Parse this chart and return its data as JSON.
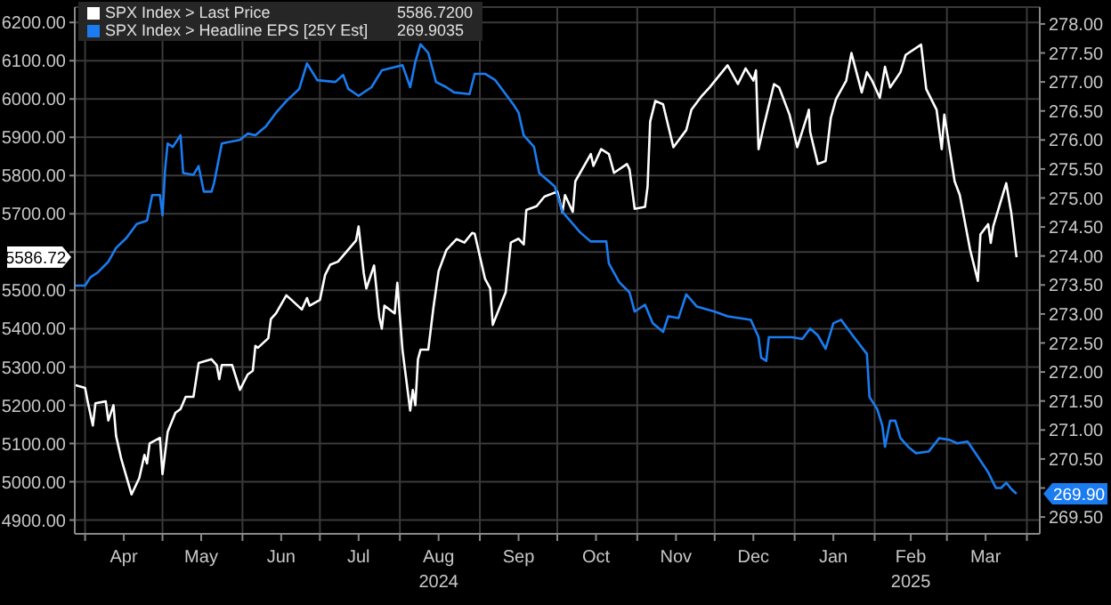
{
  "chart_data": {
    "type": "line",
    "legend": "top left",
    "grid": true,
    "line_style": "solid",
    "marker": "none",
    "annotations": [
      "5586.7200",
      "269.9035",
      "5586.72",
      "269.90"
    ],
    "xlim": [
      "2024-03-28",
      "2025-04-06"
    ],
    "xticks": [
      {
        "value": "2024-04-01",
        "label": null
      },
      {
        "value": "2024-04-16",
        "label": "Apr"
      },
      {
        "value": "2024-05-01",
        "label": null
      },
      {
        "value": "2024-05-16",
        "label": "May"
      },
      {
        "value": "2024-06-01",
        "label": null
      },
      {
        "value": "2024-06-16",
        "label": "Jun"
      },
      {
        "value": "2024-07-01",
        "label": null
      },
      {
        "value": "2024-07-16",
        "label": "Jul"
      },
      {
        "value": "2024-08-01",
        "label": null
      },
      {
        "value": "2024-08-16",
        "label": "Aug\n2024"
      },
      {
        "value": "2024-09-01",
        "label": null
      },
      {
        "value": "2024-09-16",
        "label": "Sep"
      },
      {
        "value": "2024-10-01",
        "label": null
      },
      {
        "value": "2024-10-16",
        "label": "Oct"
      },
      {
        "value": "2024-11-01",
        "label": null
      },
      {
        "value": "2024-11-16",
        "label": "Nov"
      },
      {
        "value": "2024-12-01",
        "label": null
      },
      {
        "value": "2024-12-16",
        "label": "Dec"
      },
      {
        "value": "2025-01-01",
        "label": null
      },
      {
        "value": "2025-01-16",
        "label": "Jan"
      },
      {
        "value": "2025-02-01",
        "label": null
      },
      {
        "value": "2025-02-15",
        "label": "Feb\n2025"
      },
      {
        "value": "2025-03-01",
        "label": null
      },
      {
        "value": "2025-03-16",
        "label": "Mar"
      },
      {
        "value": "2025-04-01",
        "label": null
      }
    ],
    "ylim": [
      4864,
      6240
    ],
    "yticks": [
      {
        "value": 4900,
        "label": "4900.00"
      },
      {
        "value": 5000,
        "label": "5000.00"
      },
      {
        "value": 5100,
        "label": "5100.00"
      },
      {
        "value": 5200,
        "label": "5200.00"
      },
      {
        "value": 5300,
        "label": "5300.00"
      },
      {
        "value": 5400,
        "label": "5400.00"
      },
      {
        "value": 5500,
        "label": "5500.00"
      },
      {
        "value": 5600,
        "label": null
      },
      {
        "value": 5700,
        "label": "5700.00"
      },
      {
        "value": 5800,
        "label": "5800.00"
      },
      {
        "value": 5900,
        "label": "5900.00"
      },
      {
        "value": 6000,
        "label": "6000.00"
      },
      {
        "value": 6100,
        "label": "6100.00"
      },
      {
        "value": 6200,
        "label": "6200.00"
      }
    ],
    "y2lim": [
      269.21,
      278.29
    ],
    "y2ticks": [
      {
        "value": 269.5,
        "label": "269.50"
      },
      {
        "value": 270,
        "label": null
      },
      {
        "value": 270.5,
        "label": "270.50"
      },
      {
        "value": 271,
        "label": "271.00"
      },
      {
        "value": 271.5,
        "label": "271.50"
      },
      {
        "value": 272,
        "label": "272.00"
      },
      {
        "value": 272.5,
        "label": "272.50"
      },
      {
        "value": 273,
        "label": "273.00"
      },
      {
        "value": 273.5,
        "label": "273.50"
      },
      {
        "value": 274,
        "label": "274.00"
      },
      {
        "value": 274.5,
        "label": "274.50"
      },
      {
        "value": 275,
        "label": "275.00"
      },
      {
        "value": 275.5,
        "label": "275.50"
      },
      {
        "value": 276,
        "label": "276.00"
      },
      {
        "value": 276.5,
        "label": "276.50"
      },
      {
        "value": 277,
        "label": "277.00"
      },
      {
        "value": 277.5,
        "label": "277.50"
      },
      {
        "value": 278,
        "label": "278.00"
      }
    ],
    "series": [
      {
        "name": "SPX Index > Last Price",
        "color": "#ffffff",
        "x": [
          "2024-03-28",
          "2024-04-01",
          "2024-04-02",
          "2024-04-04",
          "2024-04-05",
          "2024-04-09",
          "2024-04-10",
          "2024-04-12",
          "2024-04-13",
          "2024-04-15",
          "2024-04-19",
          "2024-04-22",
          "2024-04-24",
          "2024-04-25",
          "2024-04-26",
          "2024-04-30",
          "2024-05-01",
          "2024-05-03",
          "2024-05-06",
          "2024-05-08",
          "2024-05-10",
          "2024-05-13",
          "2024-05-15",
          "2024-05-20",
          "2024-05-22",
          "2024-05-23",
          "2024-05-24",
          "2024-05-28",
          "2024-05-31",
          "2024-06-03",
          "2024-06-05",
          "2024-06-06",
          "2024-06-07",
          "2024-06-11",
          "2024-06-12",
          "2024-06-14",
          "2024-06-18",
          "2024-06-20",
          "2024-06-24",
          "2024-06-26",
          "2024-06-27",
          "2024-07-01",
          "2024-07-03",
          "2024-07-05",
          "2024-07-08",
          "2024-07-15",
          "2024-07-16",
          "2024-07-18",
          "2024-07-19",
          "2024-07-22",
          "2024-07-24",
          "2024-07-25",
          "2024-07-26",
          "2024-07-30",
          "2024-07-31",
          "2024-08-02",
          "2024-08-05",
          "2024-08-06",
          "2024-08-07",
          "2024-08-08",
          "2024-08-09",
          "2024-08-12",
          "2024-08-14",
          "2024-08-16",
          "2024-08-19",
          "2024-08-21",
          "2024-08-23",
          "2024-08-26",
          "2024-08-29",
          "2024-08-30",
          "2024-09-03",
          "2024-09-05",
          "2024-09-06",
          "2024-09-11",
          "2024-09-13",
          "2024-09-16",
          "2024-09-18",
          "2024-09-19",
          "2024-09-23",
          "2024-09-26",
          "2024-10-01",
          "2024-10-03",
          "2024-10-04",
          "2024-10-07",
          "2024-10-08",
          "2024-10-14",
          "2024-10-15",
          "2024-10-18",
          "2024-10-21",
          "2024-10-23",
          "2024-10-28",
          "2024-10-29",
          "2024-10-31",
          "2024-11-04",
          "2024-11-05",
          "2024-11-06",
          "2024-11-08",
          "2024-11-11",
          "2024-11-15",
          "2024-11-20",
          "2024-11-22",
          "2024-11-26",
          "2024-11-29",
          "2024-12-06",
          "2024-12-10",
          "2024-12-13",
          "2024-12-16",
          "2024-12-17",
          "2024-12-18",
          "2024-12-20",
          "2024-12-24",
          "2024-12-26",
          "2024-12-30",
          "2025-01-02",
          "2025-01-06",
          "2025-01-06T12:00",
          "2025-01-07",
          "2025-01-10",
          "2025-01-13",
          "2025-01-15",
          "2025-01-17",
          "2025-01-21",
          "2025-01-23",
          "2025-01-27",
          "2025-01-29",
          "2025-01-31",
          "2025-02-03",
          "2025-02-05",
          "2025-02-07",
          "2025-02-11",
          "2025-02-13",
          "2025-02-19",
          "2025-02-21",
          "2025-02-25",
          "2025-02-27",
          "2025-02-28",
          "2025-03-04",
          "2025-03-06",
          "2025-03-10",
          "2025-03-13",
          "2025-03-14",
          "2025-03-17",
          "2025-03-18",
          "2025-03-19",
          "2025-03-24",
          "2025-03-26",
          "2025-03-28"
        ],
        "values": [
          5253,
          5245,
          5210,
          5147,
          5205,
          5210,
          5160,
          5200,
          5120,
          5060,
          4967,
          5010,
          5070,
          5048,
          5100,
          5115,
          5020,
          5130,
          5180,
          5190,
          5222,
          5222,
          5310,
          5320,
          5305,
          5268,
          5305,
          5305,
          5240,
          5280,
          5290,
          5355,
          5350,
          5375,
          5425,
          5440,
          5487,
          5475,
          5450,
          5480,
          5460,
          5475,
          5540,
          5567,
          5575,
          5630,
          5667,
          5545,
          5505,
          5565,
          5430,
          5400,
          5460,
          5440,
          5520,
          5345,
          5186,
          5240,
          5200,
          5320,
          5345,
          5345,
          5455,
          5550,
          5605,
          5620,
          5634,
          5625,
          5650,
          5648,
          5530,
          5505,
          5410,
          5495,
          5625,
          5635,
          5620,
          5710,
          5720,
          5745,
          5758,
          5704,
          5749,
          5705,
          5785,
          5856,
          5825,
          5869,
          5856,
          5807,
          5830,
          5816,
          5713,
          5718,
          5771,
          5941,
          5995,
          5986,
          5874,
          5919,
          5972,
          6008,
          6030,
          6088,
          6039,
          6080,
          6048,
          6075,
          5869,
          5928,
          6039,
          6030,
          5959,
          5874,
          5959,
          5972,
          5914,
          5830,
          5838,
          5950,
          5999,
          6048,
          6120,
          6017,
          6070,
          6048,
          6003,
          6084,
          6030,
          6070,
          6115,
          6142,
          6026,
          5972,
          5869,
          5959,
          5785,
          5749,
          5606,
          5525,
          5646,
          5673,
          5624,
          5668,
          5780,
          5700,
          5586.72
        ]
      },
      {
        "name": "SPX Index > Headline EPS [25Y Est]",
        "color": "#1a7cf0",
        "axis": "y2",
        "x": [
          "2024-03-28",
          "2024-04-01",
          "2024-04-03",
          "2024-04-06",
          "2024-04-10",
          "2024-04-13",
          "2024-04-17",
          "2024-04-21",
          "2024-04-25",
          "2024-04-27",
          "2024-04-30",
          "2024-05-01",
          "2024-05-02",
          "2024-05-03",
          "2024-05-05",
          "2024-05-08",
          "2024-05-09",
          "2024-05-13",
          "2024-05-15",
          "2024-05-17",
          "2024-05-20",
          "2024-05-21",
          "2024-05-24",
          "2024-05-31",
          "2024-06-03",
          "2024-06-06",
          "2024-06-10",
          "2024-06-14",
          "2024-06-18",
          "2024-06-23",
          "2024-06-26",
          "2024-06-30",
          "2024-07-07",
          "2024-07-10",
          "2024-07-12",
          "2024-07-16",
          "2024-07-21",
          "2024-07-25",
          "2024-08-02",
          "2024-08-05",
          "2024-08-07",
          "2024-08-09",
          "2024-08-12",
          "2024-08-15",
          "2024-08-19",
          "2024-08-22",
          "2024-08-28",
          "2024-08-30",
          "2024-09-03",
          "2024-09-07",
          "2024-09-14",
          "2024-09-16",
          "2024-09-18",
          "2024-09-22",
          "2024-09-24",
          "2024-09-30",
          "2024-10-03",
          "2024-10-10",
          "2024-10-14",
          "2024-10-20",
          "2024-10-21",
          "2024-10-25",
          "2024-10-29",
          "2024-10-31",
          "2024-11-04",
          "2024-11-07",
          "2024-11-11",
          "2024-11-13",
          "2024-11-17",
          "2024-11-20",
          "2024-11-24",
          "2024-12-01",
          "2024-12-06",
          "2024-12-15",
          "2024-12-18",
          "2024-12-19",
          "2024-12-21",
          "2024-12-22",
          "2024-12-31",
          "2025-01-04",
          "2025-01-07",
          "2025-01-10",
          "2025-01-13",
          "2025-01-16",
          "2025-01-19",
          "2025-01-24",
          "2025-01-29",
          "2025-01-30",
          "2025-02-02",
          "2025-02-04",
          "2025-02-05",
          "2025-02-07",
          "2025-02-09",
          "2025-02-11",
          "2025-02-14",
          "2025-02-17",
          "2025-02-22",
          "2025-02-26",
          "2025-03-02",
          "2025-03-05",
          "2025-03-09",
          "2025-03-13",
          "2025-03-17",
          "2025-03-20",
          "2025-03-22",
          "2025-03-24",
          "2025-03-26",
          "2025-03-28"
        ],
        "values": [
          273.49,
          273.49,
          273.63,
          273.72,
          273.9,
          274.14,
          274.31,
          274.55,
          274.61,
          275.05,
          275.05,
          274.7,
          275.49,
          275.94,
          275.88,
          276.08,
          275.43,
          275.4,
          275.55,
          275.11,
          275.11,
          275.26,
          275.94,
          276,
          276.11,
          276.08,
          276.23,
          276.47,
          276.67,
          276.88,
          277.32,
          277.03,
          277,
          277.12,
          276.88,
          276.76,
          276.91,
          277.2,
          277.29,
          276.91,
          277.35,
          277.65,
          277.5,
          277,
          276.91,
          276.82,
          276.79,
          277.14,
          277.14,
          277.03,
          276.61,
          276.47,
          276.08,
          275.88,
          275.43,
          275.2,
          274.76,
          274.4,
          274.25,
          274.25,
          273.87,
          273.55,
          273.37,
          273.04,
          273.16,
          272.84,
          272.69,
          272.96,
          272.93,
          273.34,
          273.13,
          273.04,
          272.96,
          272.9,
          272.6,
          272.25,
          272.19,
          272.6,
          272.6,
          272.57,
          272.75,
          272.63,
          272.4,
          272.84,
          272.9,
          272.6,
          272.31,
          271.57,
          271.36,
          271.07,
          270.71,
          271.16,
          271.16,
          270.86,
          270.71,
          270.6,
          270.63,
          270.86,
          270.83,
          270.77,
          270.8,
          270.54,
          270.27,
          270,
          270,
          270.09,
          269.98,
          269.9
        ]
      }
    ]
  }
}
